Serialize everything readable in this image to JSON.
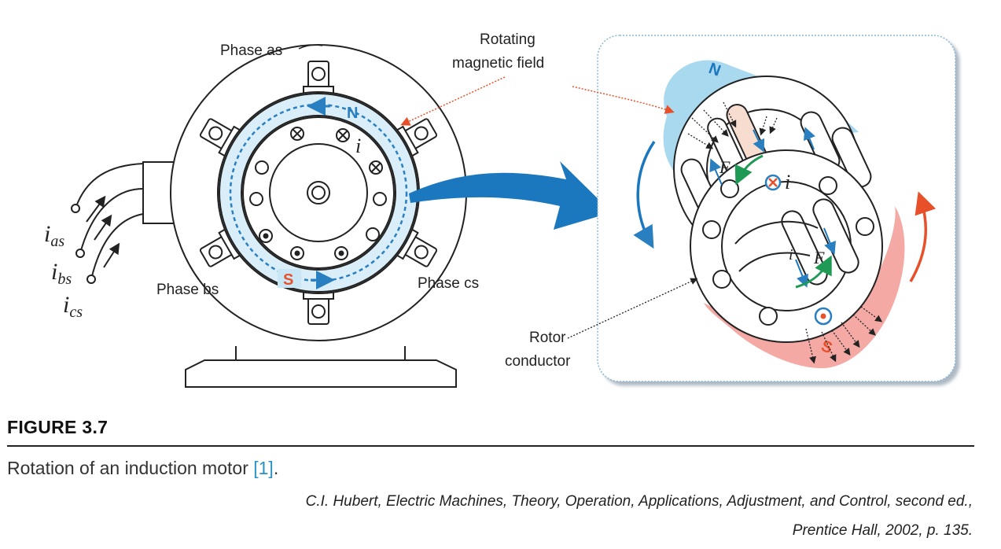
{
  "motor": {
    "phase_as": "Phase as",
    "phase_bs": "Phase bs",
    "phase_cs": "Phase cs",
    "pole_n": "N",
    "pole_s": "S",
    "current_i": "i",
    "input_currents": [
      {
        "base": "i",
        "sub": "as"
      },
      {
        "base": "i",
        "sub": "bs"
      },
      {
        "base": "i",
        "sub": "cs"
      }
    ]
  },
  "detail": {
    "rotating_field_line1": "Rotating",
    "rotating_field_line2": "magnetic field",
    "rotor_conductor_line1": "Rotor",
    "rotor_conductor_line2": "conductor",
    "force_label": "F",
    "current_label": "i",
    "pole_n": "N",
    "pole_s": "S"
  },
  "colors": {
    "field_blue": "#2a7fc1",
    "north_fill": "#a9d9ef",
    "south_fill": "#f4a9a4",
    "south_text": "#e8502a",
    "force_green": "#1f9a55",
    "ring_light": "#d9eef8",
    "link_blue": "#2a93c4"
  },
  "caption": {
    "heading": "FIGURE 3.7",
    "text": "Rotation of an induction motor ",
    "ref": "[1]",
    "text_end": ".",
    "source_line1": "C.I. Hubert, Electric Machines, Theory, Operation, Applications, Adjustment, and Control, second ed.,",
    "source_line2": "Prentice Hall, 2002, p. 135."
  }
}
